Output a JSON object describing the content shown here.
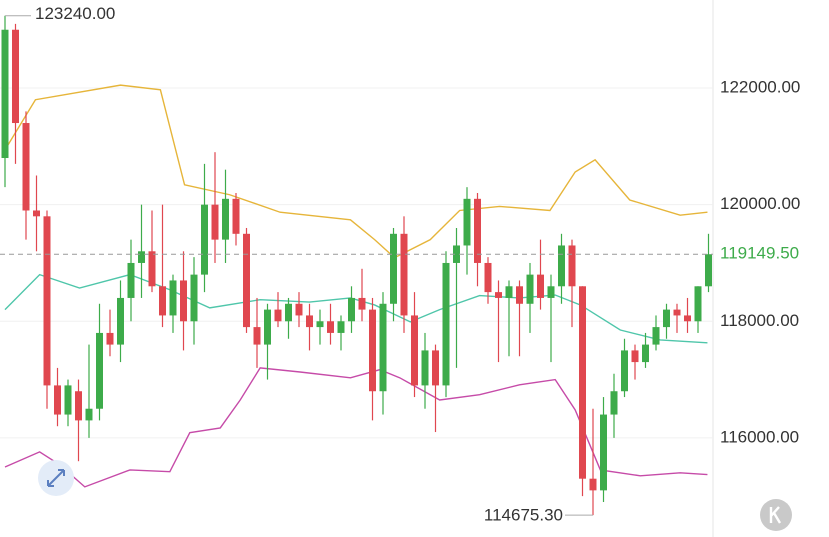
{
  "chart_data": {
    "type": "candlestick",
    "up_color": "#3dab4a",
    "down_color": "#e0474f",
    "grid": true,
    "ylim": [
      114300,
      123510
    ],
    "yticks": [
      {
        "value": 116000,
        "label": "116000.00"
      },
      {
        "value": 118000,
        "label": "118000.00"
      },
      {
        "value": 120000,
        "label": "120000.00"
      },
      {
        "value": 122000,
        "label": "122000.00"
      }
    ],
    "open": [
      120800,
      123000,
      121400,
      119900,
      119800,
      116900,
      116400,
      116800,
      116300,
      116500,
      117800,
      117600,
      118400,
      119000,
      119200,
      118600,
      118100,
      118700,
      118000,
      118800,
      120000,
      119400,
      120100,
      119500,
      117900,
      117600,
      118200,
      118000,
      118300,
      118100,
      117900,
      118000,
      117800,
      118000,
      118400,
      118200,
      116800,
      118300,
      119500,
      118100,
      116900,
      117500,
      116900,
      119000,
      119300,
      120100,
      119000,
      118500,
      118400,
      118600,
      118300,
      118800,
      118400,
      118600,
      119300,
      118600,
      115300,
      115100,
      116400,
      116800,
      117500,
      117300,
      117600,
      117900,
      118200,
      118100,
      118000,
      118600
    ],
    "high": [
      123240,
      123100,
      121600,
      120500,
      119900,
      117200,
      117000,
      117000,
      117600,
      118300,
      118200,
      118700,
      119400,
      120000,
      119900,
      120000,
      118800,
      119200,
      119100,
      120700,
      120900,
      120600,
      120200,
      119600,
      118400,
      118300,
      118500,
      118400,
      118500,
      118300,
      118200,
      118300,
      118100,
      118600,
      118900,
      118400,
      118500,
      119600,
      119800,
      118500,
      117800,
      117600,
      119200,
      119600,
      120300,
      120200,
      119100,
      118700,
      118700,
      118700,
      119000,
      119400,
      118800,
      119500,
      119400,
      118600,
      116500,
      116700,
      117100,
      117700,
      117600,
      117800,
      118100,
      118300,
      118300,
      118400,
      118600,
      119500
    ],
    "low": [
      120300,
      120700,
      119400,
      119200,
      116500,
      116200,
      116200,
      115600,
      116000,
      116300,
      117400,
      117300,
      118000,
      118400,
      118500,
      117900,
      117800,
      117500,
      117600,
      118500,
      119000,
      119000,
      119300,
      117800,
      117200,
      117000,
      117900,
      117700,
      117900,
      117500,
      117600,
      117600,
      117500,
      117800,
      118000,
      116300,
      116400,
      118000,
      117800,
      116700,
      116500,
      116100,
      116700,
      117200,
      118800,
      118600,
      118300,
      117300,
      117400,
      117400,
      117800,
      118200,
      117300,
      118300,
      117900,
      115000,
      114675.3,
      114900,
      116000,
      116700,
      117000,
      117200,
      117500,
      117700,
      117800,
      117800,
      117800,
      118500
    ],
    "close": [
      123000,
      121400,
      119900,
      119800,
      116900,
      116400,
      116900,
      116300,
      116500,
      117800,
      117600,
      118400,
      119000,
      119200,
      118600,
      118100,
      118700,
      118000,
      118800,
      120000,
      119400,
      120100,
      119500,
      117900,
      117600,
      118200,
      118000,
      118300,
      118100,
      117900,
      118000,
      117800,
      118000,
      118400,
      118200,
      116800,
      118300,
      119500,
      118100,
      116900,
      117500,
      116900,
      119000,
      119300,
      120100,
      119000,
      118500,
      118400,
      118600,
      118300,
      118800,
      118400,
      118600,
      119300,
      118600,
      115300,
      115100,
      116400,
      116800,
      117500,
      117300,
      117600,
      117900,
      118200,
      118100,
      118000,
      118600,
      119149.5
    ],
    "bands": [
      {
        "color": "#e6b53a",
        "x": [
          0,
          2.9,
          11,
          14.8,
          17.1,
          21.4,
          26.2,
          32.9,
          35.2,
          37.1,
          40.5,
          43.3,
          47.1,
          51.9,
          54.3,
          56.2,
          59.5,
          64.3,
          66.9
        ],
        "values": [
          120940,
          121800,
          122050,
          121970,
          120340,
          120170,
          119870,
          119740,
          119400,
          119090,
          119400,
          119900,
          119970,
          119900,
          120560,
          120770,
          120080,
          119820,
          119870
        ]
      },
      {
        "color": "#4fc6aa",
        "x": [
          0,
          3.3,
          7.1,
          11.9,
          15.7,
          19.5,
          24.3,
          29,
          32.9,
          35.2,
          38.6,
          41.4,
          45.2,
          49,
          52.4,
          54.8,
          58.6,
          62.4,
          66.9
        ],
        "values": [
          118200,
          118800,
          118570,
          118800,
          118540,
          118230,
          118370,
          118330,
          118400,
          118280,
          117990,
          118200,
          118440,
          118400,
          118450,
          118280,
          117850,
          117680,
          117630
        ]
      },
      {
        "color": "#c64ba8",
        "x": [
          0,
          3.3,
          5.2,
          7.6,
          11.9,
          15.7,
          17.6,
          20.5,
          22.4,
          24.3,
          28.1,
          32.9,
          35.7,
          37.6,
          41.4,
          45.2,
          49,
          52.4,
          54.3,
          56.7,
          60.5,
          64.3,
          66.9
        ],
        "values": [
          115500,
          115760,
          115540,
          115160,
          115450,
          115420,
          116090,
          116170,
          116650,
          117200,
          117130,
          117030,
          117170,
          117030,
          116650,
          116740,
          116910,
          117000,
          116480,
          115450,
          115350,
          115400,
          115370
        ]
      }
    ],
    "high_marker": {
      "value": 123240,
      "label": "123240.00"
    },
    "low_marker": {
      "value": 114675.3,
      "label": "114675.30"
    },
    "last_price": {
      "value": 119149.5,
      "label": "119149.50",
      "color": "#3dab4a"
    }
  }
}
